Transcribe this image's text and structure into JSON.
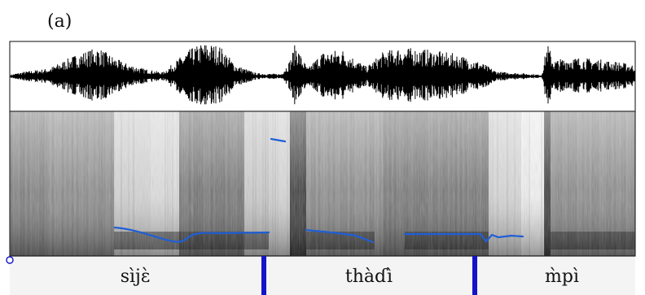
{
  "panel_label": "(a)",
  "segments": [
    {
      "label": "sìjɛ̀"
    },
    {
      "label": "thàɗì"
    },
    {
      "label": "m̀pì"
    }
  ],
  "colors": {
    "waveform": "#000000",
    "pitch_track": "#1f5fd6",
    "boundary": "#1414c8",
    "tier_background": "#f4f4f4",
    "frame": "#333333"
  }
}
